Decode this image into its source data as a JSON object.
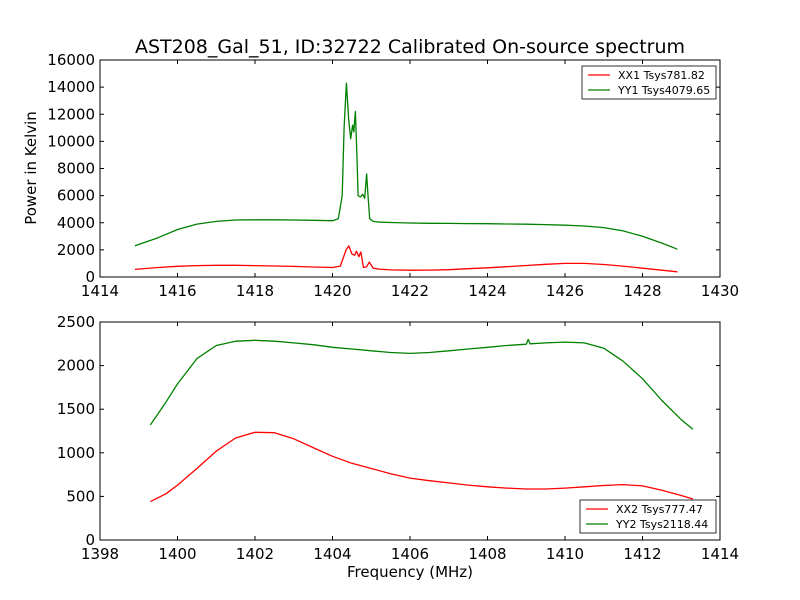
{
  "figure_title": "AST208_Gal_51, ID:32722 Calibrated On-source spectrum",
  "chart_data": [
    {
      "type": "line",
      "title": "AST208_Gal_51, ID:32722 Calibrated On-source spectrum",
      "xlabel": "",
      "ylabel": "Power in Kelvin",
      "xlim": [
        1414,
        1430
      ],
      "ylim": [
        0,
        16000
      ],
      "xticks": [
        1414,
        1416,
        1418,
        1420,
        1422,
        1424,
        1426,
        1428,
        1430
      ],
      "yticks": [
        0,
        2000,
        4000,
        6000,
        8000,
        10000,
        12000,
        14000,
        16000
      ],
      "grid": false,
      "legend_position": "top-right",
      "series": [
        {
          "name": "XX1 Tsys781.82",
          "color": "#ff0000",
          "x": [
            1414.9,
            1415.5,
            1416.0,
            1416.5,
            1417.0,
            1417.5,
            1418.0,
            1418.5,
            1419.0,
            1419.5,
            1420.0,
            1420.2,
            1420.35,
            1420.42,
            1420.5,
            1420.57,
            1420.62,
            1420.68,
            1420.73,
            1420.8,
            1420.88,
            1420.95,
            1421.05,
            1421.2,
            1421.5,
            1422.0,
            1422.5,
            1423.0,
            1423.5,
            1424.0,
            1424.5,
            1425.0,
            1425.5,
            1426.0,
            1426.5,
            1427.0,
            1427.5,
            1428.0,
            1428.5,
            1428.9
          ],
          "y": [
            560,
            700,
            790,
            840,
            860,
            860,
            840,
            810,
            780,
            740,
            700,
            800,
            2000,
            2300,
            1700,
            1600,
            1900,
            1500,
            1850,
            700,
            750,
            1100,
            650,
            580,
            520,
            500,
            510,
            540,
            610,
            680,
            760,
            850,
            940,
            1000,
            1000,
            920,
            800,
            650,
            500,
            380
          ]
        },
        {
          "name": "YY1 Tsys4079.65",
          "color": "#008000",
          "x": [
            1414.9,
            1415.5,
            1416.0,
            1416.5,
            1417.0,
            1417.5,
            1418.0,
            1418.5,
            1419.0,
            1419.5,
            1420.0,
            1420.15,
            1420.25,
            1420.3,
            1420.36,
            1420.42,
            1420.47,
            1420.52,
            1420.55,
            1420.59,
            1420.63,
            1420.66,
            1420.72,
            1420.78,
            1420.83,
            1420.88,
            1420.92,
            1420.96,
            1421.05,
            1421.2,
            1421.5,
            1422.0,
            1422.5,
            1423.0,
            1423.5,
            1424.0,
            1424.5,
            1425.0,
            1425.5,
            1426.0,
            1426.5,
            1427.0,
            1427.5,
            1428.0,
            1428.5,
            1428.9
          ],
          "y": [
            2300,
            2900,
            3500,
            3900,
            4100,
            4200,
            4220,
            4220,
            4200,
            4180,
            4150,
            4300,
            6000,
            11000,
            14300,
            11500,
            10200,
            11200,
            10700,
            12200,
            9000,
            6000,
            5900,
            6100,
            5800,
            7600,
            5800,
            4300,
            4100,
            4050,
            4020,
            3980,
            3960,
            3950,
            3940,
            3930,
            3910,
            3890,
            3860,
            3820,
            3760,
            3640,
            3400,
            3000,
            2500,
            2050
          ]
        }
      ]
    },
    {
      "type": "line",
      "title": "",
      "xlabel": "Frequency (MHz)",
      "ylabel": "",
      "xlim": [
        1398,
        1414
      ],
      "ylim": [
        0,
        2500
      ],
      "xticks": [
        1398,
        1400,
        1402,
        1404,
        1406,
        1408,
        1410,
        1412,
        1414
      ],
      "yticks": [
        0,
        500,
        1000,
        1500,
        2000,
        2500
      ],
      "grid": false,
      "legend_position": "bottom-right",
      "series": [
        {
          "name": "XX2 Tsys777.47",
          "color": "#ff0000",
          "x": [
            1399.3,
            1399.7,
            1400.0,
            1400.5,
            1401.0,
            1401.5,
            1402.0,
            1402.5,
            1403.0,
            1403.5,
            1404.0,
            1404.5,
            1405.0,
            1405.5,
            1406.0,
            1406.5,
            1407.0,
            1407.5,
            1408.0,
            1408.5,
            1409.0,
            1409.5,
            1410.0,
            1410.5,
            1411.0,
            1411.5,
            1412.0,
            1412.5,
            1413.0,
            1413.3
          ],
          "y": [
            440,
            530,
            630,
            820,
            1020,
            1170,
            1235,
            1230,
            1160,
            1060,
            960,
            880,
            820,
            760,
            710,
            680,
            655,
            630,
            610,
            595,
            585,
            585,
            595,
            610,
            625,
            635,
            620,
            570,
            510,
            470
          ]
        },
        {
          "name": "YY2 Tsys2118.44",
          "color": "#008000",
          "x": [
            1399.3,
            1399.7,
            1400.0,
            1400.5,
            1401.0,
            1401.5,
            1402.0,
            1402.5,
            1403.0,
            1403.5,
            1404.0,
            1404.5,
            1405.0,
            1405.5,
            1406.0,
            1406.5,
            1407.0,
            1407.5,
            1408.0,
            1408.5,
            1409.0,
            1409.05,
            1409.1,
            1409.5,
            1410.0,
            1410.5,
            1411.0,
            1411.5,
            1412.0,
            1412.5,
            1413.0,
            1413.3
          ],
          "y": [
            1320,
            1580,
            1790,
            2080,
            2230,
            2280,
            2290,
            2280,
            2260,
            2240,
            2210,
            2190,
            2170,
            2150,
            2140,
            2150,
            2170,
            2190,
            2210,
            2230,
            2245,
            2300,
            2250,
            2260,
            2270,
            2260,
            2200,
            2050,
            1850,
            1600,
            1380,
            1270
          ]
        }
      ]
    }
  ]
}
